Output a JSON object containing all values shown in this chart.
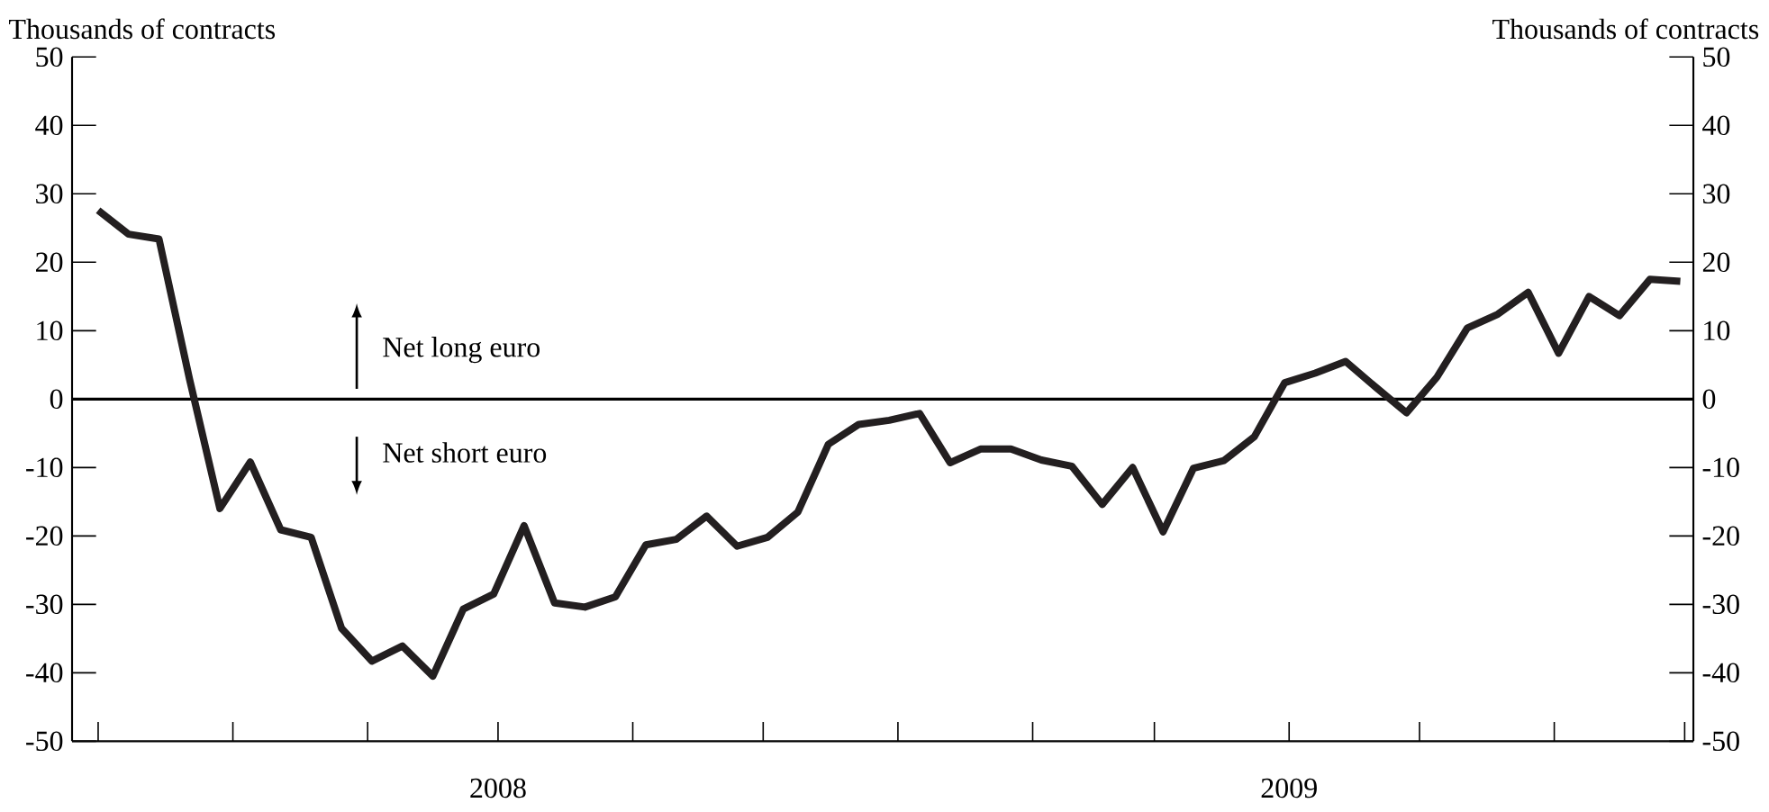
{
  "chart_data": {
    "type": "line",
    "ylabel": "Thousands of contracts",
    "y2label": "Thousands of contracts",
    "x": [
      "2008-07-01",
      "2008-07-08",
      "2008-07-15",
      "2008-07-22",
      "2008-07-29",
      "2008-08-05",
      "2008-08-12",
      "2008-08-19",
      "2008-08-26",
      "2008-09-02",
      "2008-09-09",
      "2008-09-16",
      "2008-09-23",
      "2008-09-30",
      "2008-10-07",
      "2008-10-14",
      "2008-10-21",
      "2008-10-28",
      "2008-11-04",
      "2008-11-11",
      "2008-11-18",
      "2008-11-25",
      "2008-12-02",
      "2008-12-09",
      "2008-12-16",
      "2008-12-23",
      "2008-12-30",
      "2009-01-06",
      "2009-01-13",
      "2009-01-20",
      "2009-01-27",
      "2009-02-03",
      "2009-02-10",
      "2009-02-17",
      "2009-02-24",
      "2009-03-03",
      "2009-03-10",
      "2009-03-17",
      "2009-03-24",
      "2009-03-31",
      "2009-04-07",
      "2009-04-14",
      "2009-04-21",
      "2009-04-28",
      "2009-05-05",
      "2009-05-12",
      "2009-05-19",
      "2009-05-26",
      "2009-06-02",
      "2009-06-09",
      "2009-06-16",
      "2009-06-23",
      "2009-06-30"
    ],
    "series": [
      {
        "color": "#231f20",
        "values": [
          27.6,
          24.1,
          23.4,
          3,
          -16.0,
          -9.2,
          -19.1,
          -20.2,
          -33.5,
          -38.3,
          -36.1,
          -40.5,
          -30.7,
          -28.5,
          -18.5,
          -29.8,
          -30.4,
          -28.9,
          -21.3,
          -20.5,
          -17.1,
          -21.5,
          -20.2,
          -16.5,
          -6.6,
          -3.7,
          -3.1,
          -2.1,
          -9.3,
          -7.3,
          -7.3,
          -8.9,
          -9.8,
          -15.4,
          -10.0,
          -19.4,
          -10.1,
          -9.0,
          -5.5,
          2.4,
          3.8,
          5.5,
          1.7,
          -2.0,
          3.2,
          10.4,
          12.4,
          15.6,
          6.7,
          15.0,
          12.2,
          17.5,
          17.2
        ]
      }
    ],
    "xlim": [
      "2008-06-25",
      "2009-07-03"
    ],
    "xticks": [
      {
        "value": "2008-07-01",
        "label": null
      },
      {
        "value": "2008-08-01",
        "label": null
      },
      {
        "value": "2008-09-01",
        "label": null
      },
      {
        "value": "2008-10-01",
        "label": "2008"
      },
      {
        "value": "2008-11-01",
        "label": null
      },
      {
        "value": "2008-12-01",
        "label": null
      },
      {
        "value": "2009-01-01",
        "label": null
      },
      {
        "value": "2009-02-01",
        "label": null
      },
      {
        "value": "2009-03-01",
        "label": null
      },
      {
        "value": "2009-04-01",
        "label": "2009"
      },
      {
        "value": "2009-05-01",
        "label": null
      },
      {
        "value": "2009-06-01",
        "label": null
      },
      {
        "value": "2009-07-01",
        "label": null
      }
    ],
    "ylim": [
      -50,
      50
    ],
    "yticks": [
      -50,
      -40,
      -30,
      -20,
      -10,
      0,
      10,
      20,
      30,
      40,
      50
    ],
    "y2lim": [
      -50,
      50
    ],
    "y2ticks": [
      -50,
      -40,
      -30,
      -20,
      -10,
      0,
      10,
      20,
      30,
      40,
      50
    ],
    "ref_lines": [
      {
        "axis": "y",
        "value": 0
      }
    ],
    "annotations": [
      "Net long euro",
      "Net short euro"
    ],
    "marker": "none",
    "line_style": "solid"
  }
}
